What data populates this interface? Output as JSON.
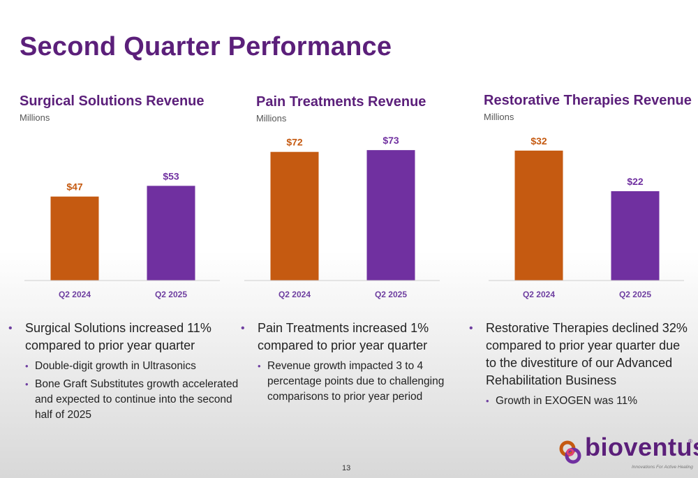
{
  "slide": {
    "title": "Second Quarter Performance",
    "page_number": "13"
  },
  "colors": {
    "orange": "#c55a11",
    "purple": "#7030a0",
    "brand": "#5b1f7a"
  },
  "charts": [
    {
      "title": "Surgical Solutions Revenue",
      "subtitle": "Millions"
    },
    {
      "title": "Pain Treatments Revenue",
      "subtitle": "Millions"
    },
    {
      "title": "Restorative Therapies Revenue",
      "subtitle": "Millions"
    }
  ],
  "chart_data": [
    {
      "type": "bar",
      "title": "Surgical Solutions Revenue",
      "subtitle": "Millions",
      "categories": [
        "Q2 2024",
        "Q2 2025"
      ],
      "values": [
        47,
        53
      ],
      "data_labels": [
        "$47",
        "$53"
      ],
      "bar_colors": [
        "#c55a11",
        "#7030a0"
      ],
      "ylim": [
        0,
        75
      ]
    },
    {
      "type": "bar",
      "title": "Pain Treatments Revenue",
      "subtitle": "Millions",
      "categories": [
        "Q2 2024",
        "Q2 2025"
      ],
      "values": [
        72,
        73
      ],
      "data_labels": [
        "$72",
        "$73"
      ],
      "bar_colors": [
        "#c55a11",
        "#7030a0"
      ],
      "ylim": [
        0,
        75
      ]
    },
    {
      "type": "bar",
      "title": "Restorative Therapies Revenue",
      "subtitle": "Millions",
      "categories": [
        "Q2 2024",
        "Q2 2025"
      ],
      "values": [
        32,
        22
      ],
      "data_labels": [
        "$32",
        "$22"
      ],
      "bar_colors": [
        "#c55a11",
        "#7030a0"
      ],
      "ylim": [
        0,
        33
      ]
    }
  ],
  "bullets": [
    {
      "main": "Surgical Solutions increased 11% compared to prior year quarter",
      "subs": [
        "Double-digit growth in Ultrasonics",
        "Bone Graft Substitutes growth accelerated and expected to continue into the second half of 2025"
      ]
    },
    {
      "main": "Pain Treatments increased 1% compared to prior year quarter",
      "subs": [
        "Revenue growth impacted 3 to 4 percentage points due to challenging comparisons to prior year period"
      ]
    },
    {
      "main": "Restorative Therapies declined 32% compared to prior year quarter due to the divestiture of our Advanced Rehabilitation Business",
      "subs": [
        "Growth in EXOGEN was 11%"
      ]
    }
  ],
  "logo": {
    "name": "bioventus",
    "registered": "®",
    "tagline": "Innovations For Active Healing"
  }
}
